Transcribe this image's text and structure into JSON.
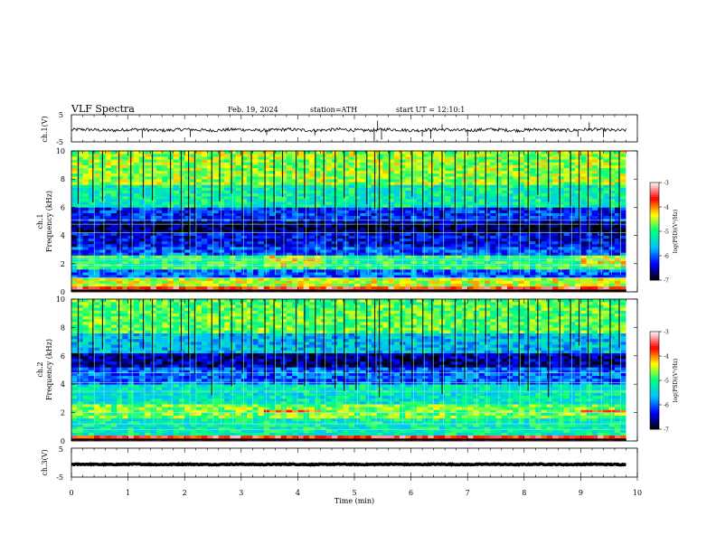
{
  "header": {
    "title": "VLF Spectra",
    "date": "Feb. 19, 2024",
    "station": "station=ATH",
    "start_time": "start UT = 12:10:1"
  },
  "chart_data": [
    {
      "type": "line",
      "name": "ch1-waveform",
      "ylabel": "ch.1(V)",
      "ylim": [
        -5,
        5
      ],
      "y_ticklabels": [
        "5",
        "-5"
      ],
      "xlim": [
        0,
        10
      ],
      "baseline_v": -0.6,
      "noise_amplitude_v": 0.6,
      "spikes": [
        {
          "x": 1.25,
          "y": -3.5
        },
        {
          "x": 2.1,
          "y": -3.2
        },
        {
          "x": 3.45,
          "y": -2.5
        },
        {
          "x": 4.3,
          "y": -2.6
        },
        {
          "x": 5.35,
          "y": -4.8
        },
        {
          "x": 5.41,
          "y": 2.8
        },
        {
          "x": 5.48,
          "y": -4.2
        },
        {
          "x": 6.2,
          "y": -3.0
        },
        {
          "x": 6.35,
          "y": -3.8
        },
        {
          "x": 6.55,
          "y": 1.5
        },
        {
          "x": 7.0,
          "y": -3.0
        },
        {
          "x": 8.95,
          "y": -3.1
        },
        {
          "x": 9.15,
          "y": 2.2
        },
        {
          "x": 9.4,
          "y": -3.3
        }
      ]
    },
    {
      "type": "heatmap",
      "name": "ch1-spectrogram",
      "ylabel_channel": "ch.1",
      "ylabel": "Frequency (kHz)",
      "ylim": [
        0,
        10
      ],
      "y_ticks": [
        0,
        2,
        4,
        6,
        8,
        10
      ],
      "xlim": [
        0,
        10
      ],
      "colorbar": {
        "label": "log(PSD)(V²/Hz)",
        "range": [
          -7,
          -3
        ],
        "ticks": [
          "-3",
          "-4",
          "-5",
          "-6",
          "-7"
        ]
      },
      "bands": [
        {
          "f0": 0.0,
          "f1": 0.4,
          "level": -3.6
        },
        {
          "f0": 0.4,
          "f1": 0.9,
          "level": -4.5
        },
        {
          "f0": 0.9,
          "f1": 1.5,
          "level": -6.0
        },
        {
          "f0": 1.5,
          "f1": 2.5,
          "level": -5.0
        },
        {
          "f0": 2.5,
          "f1": 3.2,
          "level": -6.1
        },
        {
          "f0": 3.2,
          "f1": 4.2,
          "level": -6.4
        },
        {
          "f0": 4.2,
          "f1": 5.0,
          "level": -6.8
        },
        {
          "f0": 5.0,
          "f1": 6.0,
          "level": -6.2
        },
        {
          "f0": 6.0,
          "f1": 7.5,
          "level": -5.2
        },
        {
          "f0": 7.5,
          "f1": 10.0,
          "level": -4.6
        }
      ],
      "tones_khz": [
        1.0,
        1.9,
        2.3,
        4.2,
        4.8,
        5.1
      ],
      "enhanced_band": {
        "f0": 1.7,
        "f1": 2.5,
        "level": -4.4,
        "x_ranges": [
          [
            3.35,
            4.35
          ],
          [
            9.0,
            9.8
          ]
        ]
      }
    },
    {
      "type": "heatmap",
      "name": "ch2-spectrogram",
      "ylabel_channel": "ch.2",
      "ylabel": "Frequency (kHz)",
      "ylim": [
        0,
        10
      ],
      "y_ticks": [
        0,
        2,
        4,
        6,
        8,
        10
      ],
      "xlim": [
        0,
        10
      ],
      "colorbar": {
        "label": "log(PSD)(V²/Hz)",
        "range": [
          -7,
          -3
        ],
        "ticks": [
          "-3",
          "-4",
          "-5",
          "-6",
          "-7"
        ]
      },
      "bands": [
        {
          "f0": 0.0,
          "f1": 0.4,
          "level": -3.6
        },
        {
          "f0": 0.4,
          "f1": 1.5,
          "level": -5.2
        },
        {
          "f0": 1.5,
          "f1": 2.5,
          "level": -4.7
        },
        {
          "f0": 2.5,
          "f1": 4.0,
          "level": -5.3
        },
        {
          "f0": 4.0,
          "f1": 5.2,
          "level": -6.0
        },
        {
          "f0": 5.2,
          "f1": 6.2,
          "level": -6.6
        },
        {
          "f0": 6.2,
          "f1": 7.5,
          "level": -5.6
        },
        {
          "f0": 7.5,
          "f1": 10.0,
          "level": -4.8
        }
      ],
      "tones_khz": [
        0.8,
        1.2,
        2.0,
        3.5,
        4.1,
        4.8
      ],
      "enhanced_band": {
        "f0": 1.85,
        "f1": 2.2,
        "level": -3.8,
        "x_ranges": [
          [
            3.35,
            4.35
          ],
          [
            9.0,
            9.8
          ]
        ]
      }
    },
    {
      "type": "line",
      "name": "ch3-waveform",
      "ylabel": "ch.3(V)",
      "ylim": [
        -5,
        5
      ],
      "y_ticklabels": [
        "5",
        "-5"
      ],
      "xlim": [
        0,
        10
      ],
      "baseline_v": -0.6,
      "noise_amplitude_v": 0.15
    }
  ],
  "x_axis": {
    "label": "Time (min)",
    "ticks": [
      "0",
      "1",
      "2",
      "3",
      "4",
      "5",
      "6",
      "7",
      "8",
      "9",
      "10"
    ]
  },
  "sferics_min": [
    0.12,
    0.38,
    0.55,
    0.84,
    1.05,
    1.27,
    1.43,
    1.75,
    1.94,
    2.07,
    2.18,
    2.48,
    2.62,
    2.83,
    3.02,
    3.18,
    3.42,
    3.58,
    3.73,
    3.97,
    4.12,
    4.31,
    4.46,
    4.66,
    4.82,
    5.03,
    5.22,
    5.36,
    5.44,
    5.62,
    5.83,
    6.02,
    6.21,
    6.37,
    6.55,
    6.78,
    6.95,
    7.14,
    7.32,
    7.53,
    7.72,
    7.91,
    8.07,
    8.24,
    8.43,
    8.63,
    8.82,
    8.97,
    9.13,
    9.34,
    9.52,
    9.68
  ],
  "colors": {
    "axis": "#000000",
    "waveform": "#000000",
    "colormap": [
      "#000000",
      "#0000ff",
      "#00c0ff",
      "#00ff80",
      "#ffff00",
      "#ff0000",
      "#ffffff"
    ]
  }
}
